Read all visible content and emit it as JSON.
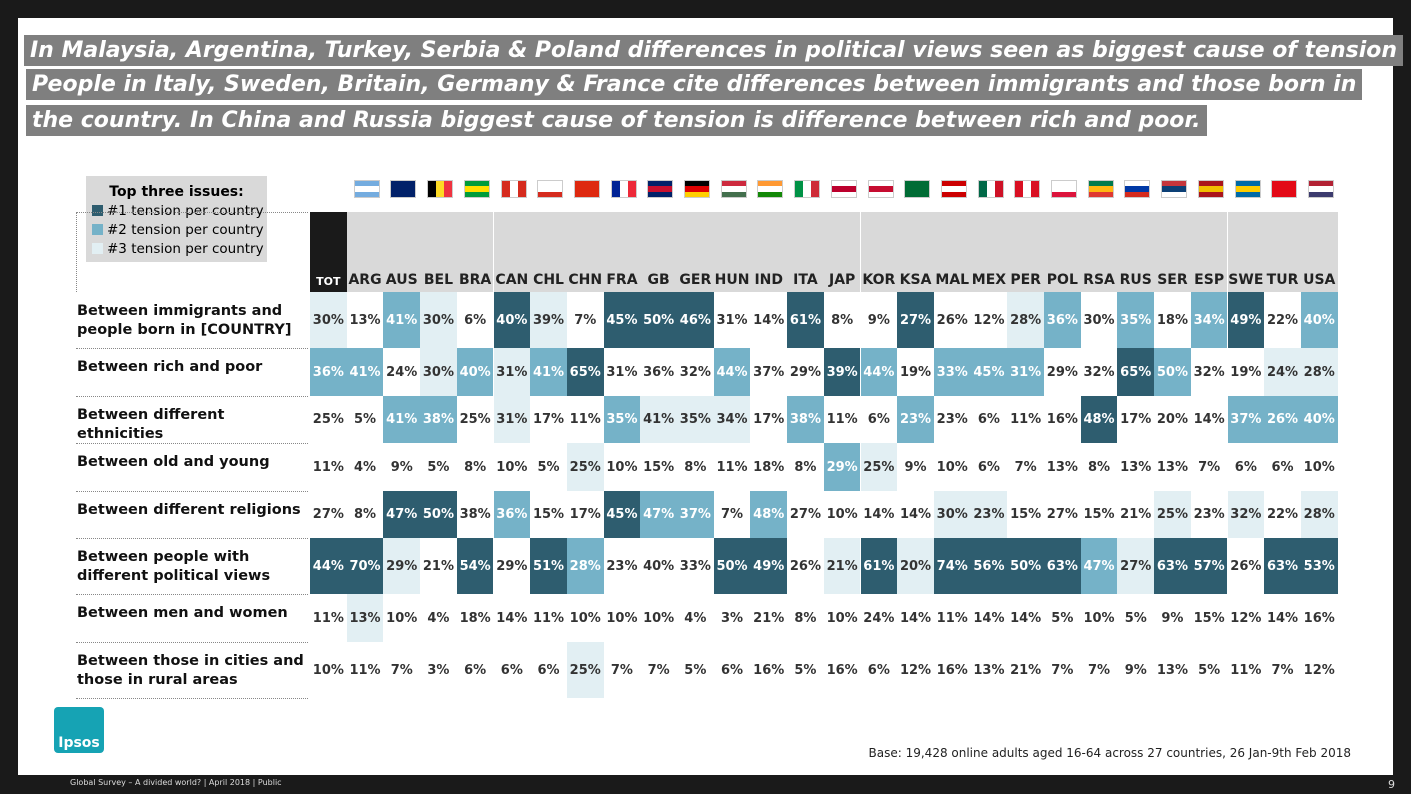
{
  "title_lines": [
    "In Malaysia, Argentina, Turkey, Serbia & Poland differences in political views seen as biggest cause of tension",
    "People in Italy, Sweden, Britain, Germany & France cite differences between immigrants and those born in",
    "the country.  In China and Russia biggest cause of tension is difference between rich and poor."
  ],
  "legend": {
    "title": "Top three issues:",
    "items": [
      {
        "label": "#1 tension per country",
        "color": "#2e5d6f"
      },
      {
        "label": "#2 tension per country",
        "color": "#75b2c8"
      },
      {
        "label": "#3 tension per country",
        "color": "#e2eff3"
      }
    ]
  },
  "table": {
    "columns": [
      "TOT",
      "ARG",
      "AUS",
      "BEL",
      "BRA",
      "CAN",
      "CHL",
      "CHN",
      "FRA",
      "GB",
      "GER",
      "HUN",
      "IND",
      "ITA",
      "JAP",
      "KOR",
      "KSA",
      "MAL",
      "MEX",
      "PER",
      "POL",
      "RSA",
      "RUS",
      "SER",
      "ESP",
      "SWE",
      "TUR",
      "USA"
    ],
    "rows": [
      {
        "label": "Between immigrants and people born in [COUNTRY]",
        "values": [
          "30%",
          "13%",
          "41%",
          "30%",
          "6%",
          "40%",
          "39%",
          "7%",
          "45%",
          "50%",
          "46%",
          "31%",
          "14%",
          "61%",
          "8%",
          "9%",
          "27%",
          "26%",
          "12%",
          "28%",
          "36%",
          "30%",
          "35%",
          "18%",
          "34%",
          "49%",
          "22%",
          "40%"
        ],
        "shade": [
          3,
          0,
          2,
          3,
          0,
          1,
          3,
          0,
          1,
          1,
          1,
          0,
          0,
          1,
          0,
          0,
          1,
          0,
          0,
          3,
          2,
          0,
          2,
          0,
          2,
          1,
          0,
          2
        ]
      },
      {
        "label": "Between rich and poor",
        "values": [
          "36%",
          "41%",
          "24%",
          "30%",
          "40%",
          "31%",
          "41%",
          "65%",
          "31%",
          "36%",
          "32%",
          "44%",
          "37%",
          "29%",
          "39%",
          "44%",
          "19%",
          "33%",
          "45%",
          "31%",
          "29%",
          "32%",
          "65%",
          "50%",
          "32%",
          "19%",
          "24%",
          "28%"
        ],
        "shade": [
          2,
          2,
          0,
          3,
          2,
          3,
          2,
          1,
          0,
          0,
          0,
          2,
          0,
          0,
          1,
          2,
          0,
          2,
          2,
          2,
          0,
          0,
          1,
          2,
          0,
          0,
          3,
          3
        ]
      },
      {
        "label": "Between different ethnicities",
        "values": [
          "25%",
          "5%",
          "41%",
          "38%",
          "25%",
          "31%",
          "17%",
          "11%",
          "35%",
          "41%",
          "35%",
          "34%",
          "17%",
          "38%",
          "11%",
          "6%",
          "23%",
          "23%",
          "6%",
          "11%",
          "16%",
          "48%",
          "17%",
          "20%",
          "14%",
          "37%",
          "26%",
          "40%"
        ],
        "shade": [
          0,
          0,
          2,
          2,
          0,
          3,
          0,
          0,
          2,
          3,
          3,
          3,
          0,
          2,
          0,
          0,
          2,
          0,
          0,
          0,
          0,
          1,
          0,
          0,
          0,
          2,
          2,
          2
        ]
      },
      {
        "label": "Between old and young",
        "values": [
          "11%",
          "4%",
          "9%",
          "5%",
          "8%",
          "10%",
          "5%",
          "25%",
          "10%",
          "15%",
          "8%",
          "11%",
          "18%",
          "8%",
          "29%",
          "25%",
          "9%",
          "10%",
          "6%",
          "7%",
          "13%",
          "8%",
          "13%",
          "13%",
          "7%",
          "6%",
          "6%",
          "10%"
        ],
        "shade": [
          0,
          0,
          0,
          0,
          0,
          0,
          0,
          3,
          0,
          0,
          0,
          0,
          0,
          0,
          2,
          3,
          0,
          0,
          0,
          0,
          0,
          0,
          0,
          0,
          0,
          0,
          0,
          0
        ]
      },
      {
        "label": "Between different religions",
        "values": [
          "27%",
          "8%",
          "47%",
          "50%",
          "38%",
          "36%",
          "15%",
          "17%",
          "45%",
          "47%",
          "37%",
          "7%",
          "48%",
          "27%",
          "10%",
          "14%",
          "14%",
          "30%",
          "23%",
          "15%",
          "27%",
          "15%",
          "21%",
          "25%",
          "23%",
          "32%",
          "22%",
          "28%"
        ],
        "shade": [
          0,
          0,
          1,
          1,
          0,
          2,
          0,
          0,
          1,
          2,
          2,
          0,
          2,
          0,
          0,
          0,
          0,
          3,
          3,
          0,
          0,
          0,
          0,
          3,
          0,
          3,
          0,
          3
        ]
      },
      {
        "label": "Between people with different political views",
        "values": [
          "44%",
          "70%",
          "29%",
          "21%",
          "54%",
          "29%",
          "51%",
          "28%",
          "23%",
          "40%",
          "33%",
          "50%",
          "49%",
          "26%",
          "21%",
          "61%",
          "20%",
          "74%",
          "56%",
          "50%",
          "63%",
          "47%",
          "27%",
          "63%",
          "57%",
          "26%",
          "63%",
          "53%"
        ],
        "shade": [
          1,
          1,
          3,
          0,
          1,
          0,
          1,
          2,
          0,
          0,
          0,
          1,
          1,
          0,
          3,
          1,
          3,
          1,
          1,
          1,
          1,
          2,
          3,
          1,
          1,
          0,
          1,
          1
        ]
      },
      {
        "label": "Between men and women",
        "values": [
          "11%",
          "13%",
          "10%",
          "4%",
          "18%",
          "14%",
          "11%",
          "10%",
          "10%",
          "10%",
          "4%",
          "3%",
          "21%",
          "8%",
          "10%",
          "24%",
          "14%",
          "11%",
          "14%",
          "14%",
          "5%",
          "10%",
          "5%",
          "9%",
          "15%",
          "12%",
          "14%",
          "16%"
        ],
        "shade": [
          0,
          3,
          0,
          0,
          0,
          0,
          0,
          0,
          0,
          0,
          0,
          0,
          0,
          0,
          0,
          0,
          0,
          0,
          0,
          0,
          0,
          0,
          0,
          0,
          0,
          0,
          0,
          0
        ]
      },
      {
        "label": "Between those in cities and those in rural areas",
        "values": [
          "10%",
          "11%",
          "7%",
          "3%",
          "6%",
          "6%",
          "6%",
          "25%",
          "7%",
          "7%",
          "5%",
          "6%",
          "16%",
          "5%",
          "16%",
          "6%",
          "12%",
          "16%",
          "13%",
          "21%",
          "7%",
          "7%",
          "9%",
          "13%",
          "5%",
          "11%",
          "7%",
          "12%"
        ],
        "shade": [
          0,
          0,
          0,
          0,
          0,
          0,
          0,
          3,
          0,
          0,
          0,
          0,
          0,
          0,
          0,
          0,
          0,
          0,
          0,
          0,
          0,
          0,
          0,
          0,
          0,
          0,
          0,
          0
        ]
      }
    ]
  },
  "base_note": "Base: 19,428 online adults aged 16-64 across 27 countries,  26 Jan-9th Feb 2018",
  "logo": "Ipsos",
  "footer": "Global Survey – A divided world? | April  2018 | Public",
  "page_number": "9"
}
